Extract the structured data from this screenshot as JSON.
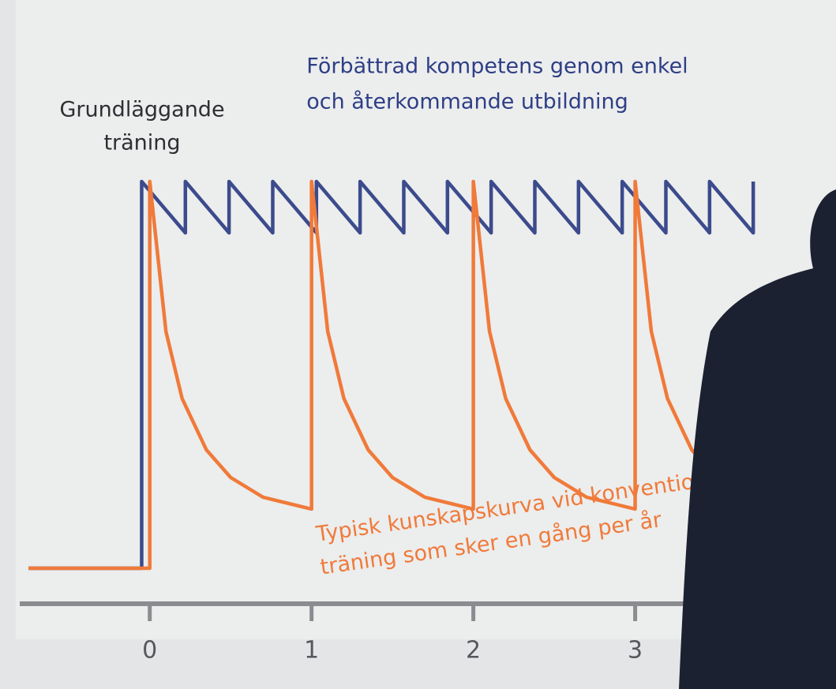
{
  "chart_data": {
    "type": "line",
    "annotations": [
      [
        "Grundläggande",
        "träning"
      ],
      [
        "Förbättrad kompetens genom enkel",
        "och återkommande utbildning"
      ],
      [
        "Typisk kunskapskurva vid konventio",
        "träning som sker en gång per år"
      ]
    ],
    "series": [
      {
        "color": "#3b4b8c",
        "x": [
          -0.75,
          -0.05,
          -0.05,
          0.22,
          0.22,
          0.49,
          0.49,
          0.76,
          0.76,
          1.03,
          1.03,
          1.3,
          1.3,
          1.57,
          1.57,
          1.84,
          1.84,
          2.11,
          2.11,
          2.38,
          2.38,
          2.65,
          2.65,
          2.92,
          2.92,
          3.19,
          3.19,
          3.46,
          3.46,
          3.73,
          3.73
        ],
        "values": [
          2,
          2,
          100,
          87,
          100,
          87,
          100,
          87,
          100,
          87,
          100,
          87,
          100,
          87,
          100,
          87,
          100,
          87,
          100,
          87,
          100,
          87,
          100,
          87,
          100,
          87,
          100,
          87,
          100,
          87,
          100
        ]
      },
      {
        "color": "#f07a3a",
        "x": [
          -0.75,
          0,
          0,
          0.1,
          0.2,
          0.35,
          0.5,
          0.7,
          1,
          1,
          1.1,
          1.2,
          1.35,
          1.5,
          1.7,
          2,
          2,
          2.1,
          2.2,
          2.35,
          2.5,
          2.7,
          3,
          3,
          3.1,
          3.2,
          3.35,
          3.5
        ],
        "values": [
          2,
          2,
          100,
          62,
          45,
          32,
          25,
          20,
          17,
          100,
          62,
          45,
          32,
          25,
          20,
          17,
          100,
          62,
          45,
          32,
          25,
          20,
          17,
          100,
          62,
          45,
          32,
          25
        ]
      }
    ],
    "xlim": [
      -0.75,
      4.1
    ],
    "xticks": [
      0,
      1,
      2,
      3
    ],
    "ylim": [
      0,
      100
    ]
  }
}
